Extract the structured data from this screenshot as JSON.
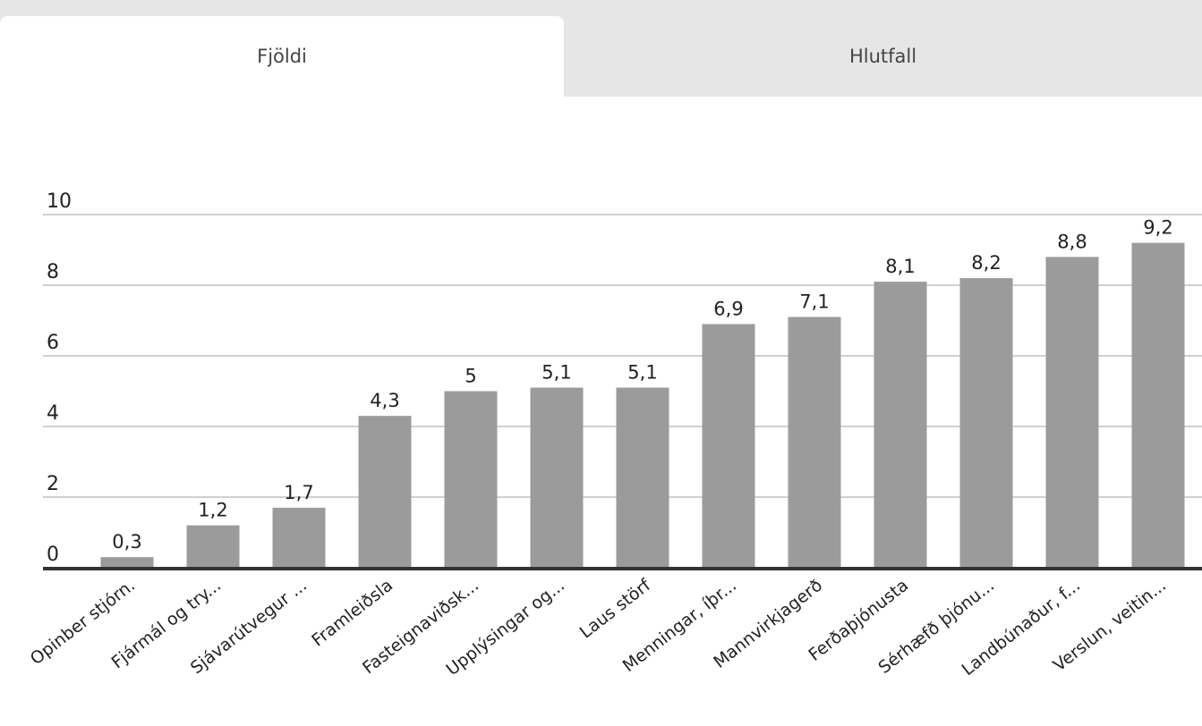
{
  "tabs": [
    {
      "label": "Fjöldi",
      "active": true
    },
    {
      "label": "Hlutfall",
      "active": false
    }
  ],
  "colors": {
    "bar": "#9b9b9b",
    "grid": "#d0d0d0",
    "baseline": "#333333",
    "tab_bg": "#e6e6e6"
  },
  "chart_data": {
    "type": "bar",
    "categories": [
      "Opinber stjórn.",
      "Fjármál og try...",
      "Sjávarútvegur ...",
      "Framleiðsla",
      "Fasteignaviðsk...",
      "Upplýsingar og...",
      "Laus störf",
      "Menningar, íþr...",
      "Mannvirkjagerð",
      "Ferðaþjónusta",
      "Sérhæfð þjónu...",
      "Landbúnaður, f...",
      "Verslun, veitin..."
    ],
    "values": [
      0.3,
      1.2,
      1.7,
      4.3,
      5,
      5.1,
      5.1,
      6.9,
      7.1,
      8.1,
      8.2,
      8.8,
      9.2
    ],
    "value_labels": [
      "0,3",
      "1,2",
      "1,7",
      "4,3",
      "5",
      "5,1",
      "5,1",
      "6,9",
      "7,1",
      "8,1",
      "8,2",
      "8,8",
      "9,2"
    ],
    "y_ticks": [
      0,
      2,
      4,
      6,
      8,
      10
    ],
    "y_tick_labels": [
      "0",
      "2",
      "4",
      "6",
      "8",
      "10"
    ],
    "ylim": [
      0,
      10
    ],
    "grid": true,
    "legend": "none"
  }
}
